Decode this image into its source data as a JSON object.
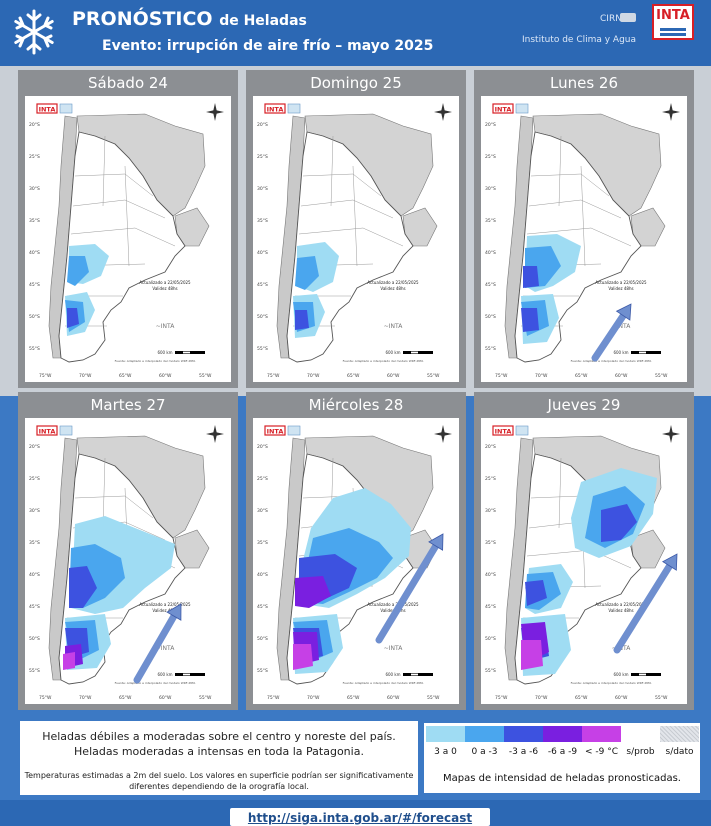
{
  "header": {
    "title": "PRONÓSTICO",
    "title_suffix": "de Heladas",
    "subtitle": "Evento: irrupción de aire frío – mayo 2025",
    "crn_label": "CIRN",
    "inta_label": "INTA",
    "institute": "Instituto de Clima y Agua",
    "icons": [
      "snowflake-icon",
      "flag-icon",
      "inta-logo"
    ],
    "colors": {
      "header_bg": "#2c68b4",
      "brand_red": "#d71f26",
      "panel_grey": "#8c8f93"
    }
  },
  "map_common": {
    "logo_text": "INTA",
    "lat_labels": [
      "20°S",
      "25°S",
      "30°S",
      "35°S",
      "40°S",
      "45°S",
      "50°S",
      "55°S"
    ],
    "lon_labels": [
      "75°W",
      "70°W",
      "65°W",
      "60°W",
      "55°W"
    ],
    "update_line1": "Actualizado a 22/05/2025",
    "update_line2": "Validez 48hs",
    "scale_text": "600 km",
    "source_text": "Fuente: Adaptado e interpolado del modelo WRF-INTA"
  },
  "panels": [
    {
      "day": "Sábado 24",
      "frost_coverage": "Patagonia oeste",
      "arrow": false
    },
    {
      "day": "Domingo 25",
      "frost_coverage": "Patagonia oeste",
      "arrow": false
    },
    {
      "day": "Lunes 26",
      "frost_coverage": "Patagonia",
      "arrow": true
    },
    {
      "day": "Martes 27",
      "frost_coverage": "Patagonia y centro",
      "arrow": true
    },
    {
      "day": "Miércoles 28",
      "frost_coverage": "Patagonia, centro y noreste",
      "arrow": true
    },
    {
      "day": "Jueves 29",
      "frost_coverage": "Patagonia, centro y noreste",
      "arrow": true
    }
  ],
  "footer": {
    "line1": "Heladas débiles a moderadas sobre el centro y noreste del país.",
    "line2": "Heladas moderadas a intensas en toda la Patagonia.",
    "note1": "Temperaturas estimadas a 2m del suelo. Los valores en superficie podrían ser significativamente",
    "note2": "diferentes dependiendo de la orografía local."
  },
  "legend": {
    "title": "Mapas de intensidad de heladas pronosticadas.",
    "items": [
      {
        "label": "3 a 0",
        "color": "#9fdcf3"
      },
      {
        "label": "0 a -3",
        "color": "#4aa6ee"
      },
      {
        "label": "-3 a -6",
        "color": "#3d52e0"
      },
      {
        "label": "-6 a -9",
        "color": "#7a1fe0"
      },
      {
        "label": "< -9 °C",
        "color": "#c640e6"
      },
      {
        "label": "s/prob",
        "color": "#ffffff"
      },
      {
        "label": "s/dato",
        "color": "#e2e5ea"
      }
    ]
  },
  "url": "http://siga.inta.gob.ar/#/forecast"
}
